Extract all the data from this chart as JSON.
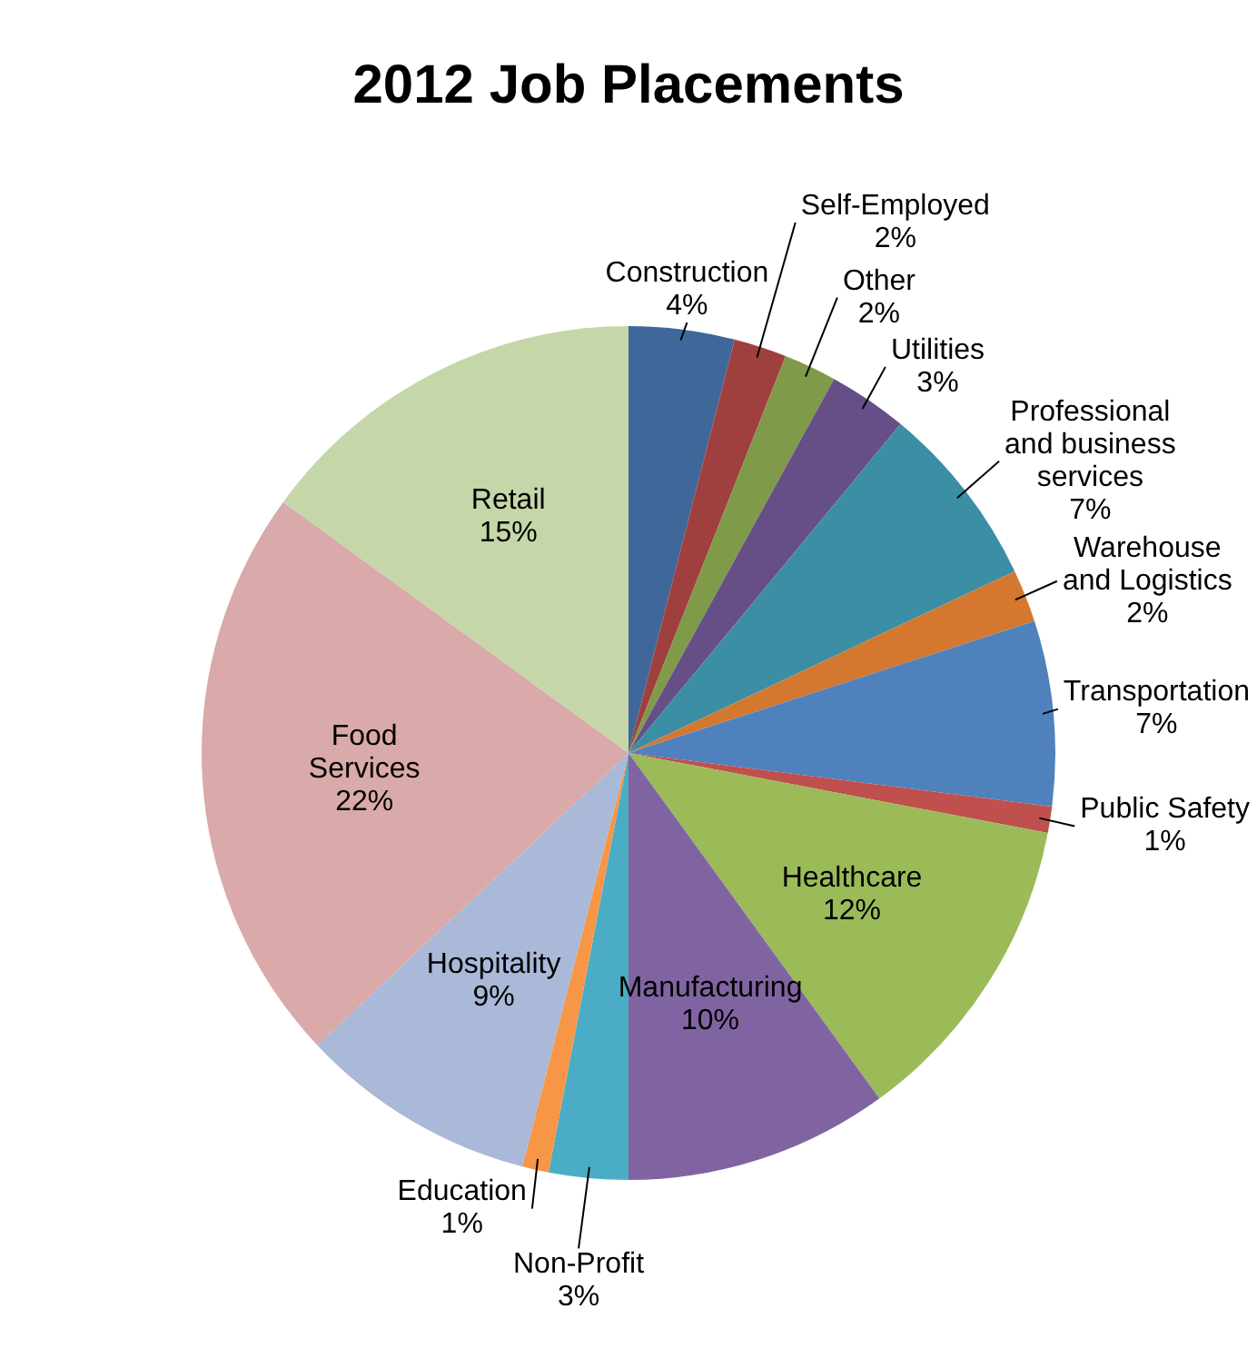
{
  "chart_data": {
    "type": "pie",
    "title": "2012 Job Placements",
    "categories": [
      "Construction",
      "Self-Employed",
      "Other",
      "Utilities",
      "Professional and business services",
      "Warehouse and Logistics",
      "Transportation",
      "Public Safety",
      "Healthcare",
      "Manufacturing",
      "Non-Profit",
      "Education",
      "Hospitality",
      "Food Services",
      "Retail"
    ],
    "values": [
      4,
      2,
      2,
      3,
      7,
      2,
      7,
      1,
      12,
      10,
      3,
      1,
      9,
      22,
      15
    ],
    "value_labels": [
      "4%",
      "2%",
      "2%",
      "3%",
      "7%",
      "2%",
      "7%",
      "1%",
      "12%",
      "10%",
      "3%",
      "1%",
      "9%",
      "22%",
      "15%"
    ],
    "colors": [
      "#3f679a",
      "#a0403e",
      "#7f9a48",
      "#664f87",
      "#3c8ea5",
      "#d4782f",
      "#4f81bd",
      "#c0504d",
      "#9bbb59",
      "#8064a2",
      "#4bacc6",
      "#f79646",
      "#aab9d8",
      "#d9aaa9",
      "#c5d6a9"
    ],
    "legend": false
  }
}
